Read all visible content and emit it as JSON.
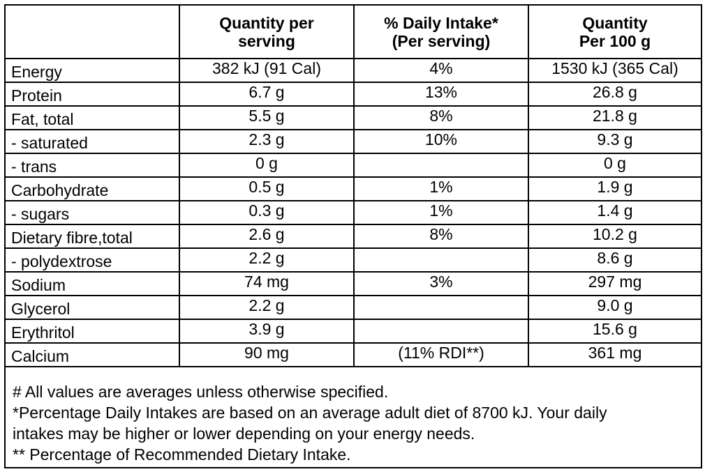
{
  "headers": {
    "col1": "",
    "col2_line1": "Quantity per",
    "col2_line2": "serving",
    "col3_line1": "% Daily Intake*",
    "col3_line2": "(Per serving)",
    "col4_line1": "Quantity",
    "col4_line2": "Per 100 g"
  },
  "rows": [
    {
      "name": "Energy",
      "per_serving": "382 kJ (91 Cal)",
      "daily_intake": "4%",
      "per_100g": "1530 kJ (365 Cal)"
    },
    {
      "name": "Protein",
      "per_serving": "6.7 g",
      "daily_intake": "13%",
      "per_100g": "26.8 g"
    },
    {
      "name": "Fat, total",
      "per_serving": "5.5 g",
      "daily_intake": "8%",
      "per_100g": "21.8 g"
    },
    {
      "name": "- saturated",
      "per_serving": "2.3 g",
      "daily_intake": "10%",
      "per_100g": "9.3 g"
    },
    {
      "name": "- trans",
      "per_serving": "0 g",
      "daily_intake": "",
      "per_100g": "0 g"
    },
    {
      "name": "Carbohydrate",
      "per_serving": "0.5 g",
      "daily_intake": "1%",
      "per_100g": "1.9 g"
    },
    {
      "name": "- sugars",
      "per_serving": "0.3 g",
      "daily_intake": "1%",
      "per_100g": "1.4 g"
    },
    {
      "name": "Dietary fibre,total",
      "per_serving": "2.6 g",
      "daily_intake": "8%",
      "per_100g": "10.2 g"
    },
    {
      "name": "- polydextrose",
      "per_serving": "2.2 g",
      "daily_intake": "",
      "per_100g": "8.6 g"
    },
    {
      "name": "Sodium",
      "per_serving": "74 mg",
      "daily_intake": "3%",
      "per_100g": "297 mg"
    },
    {
      "name": "Glycerol",
      "per_serving": "2.2 g",
      "daily_intake": "",
      "per_100g": "9.0 g"
    },
    {
      "name": "Erythritol",
      "per_serving": "3.9 g",
      "daily_intake": "",
      "per_100g": "15.6 g"
    },
    {
      "name": "Calcium",
      "per_serving": "90 mg",
      "daily_intake": "(11% RDI**)",
      "per_100g": "361 mg"
    }
  ],
  "notes": [
    "# All values are averages unless otherwise specified.",
    "*Percentage Daily Intakes are based on an average adult diet of 8700 kJ. Your daily",
    "intakes may be higher or lower depending on your energy needs.",
    "** Percentage of Recommended Dietary Intake."
  ]
}
